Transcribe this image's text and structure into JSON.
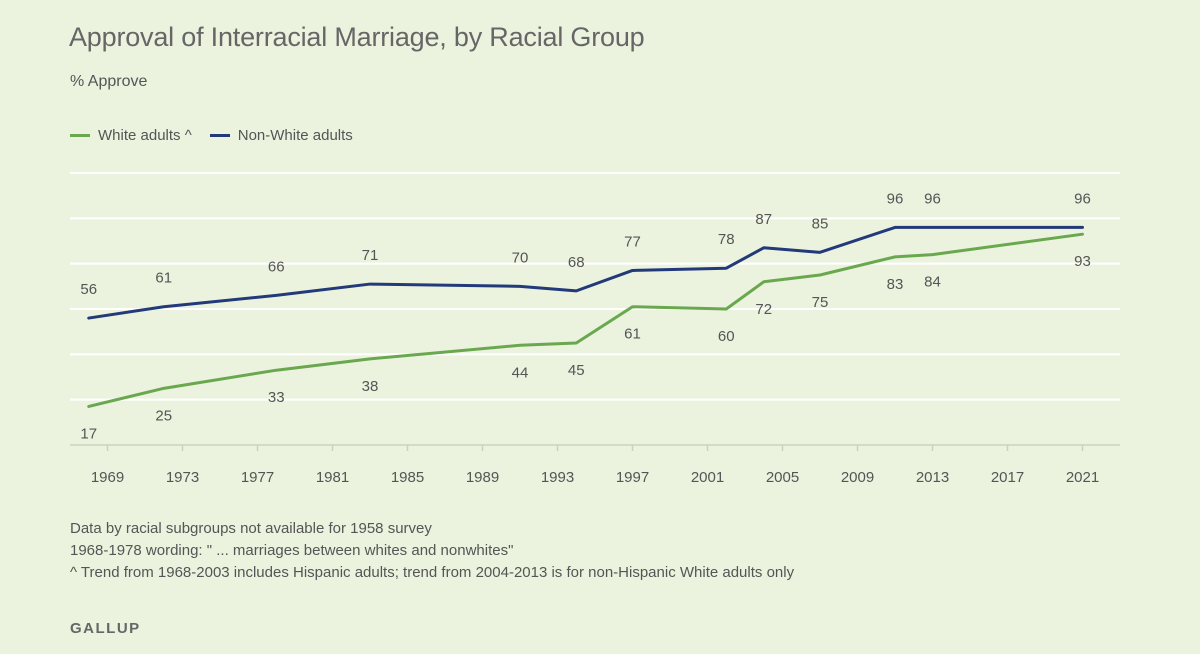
{
  "chart_data": {
    "type": "line",
    "title": "Approval of Interracial Marriage, by Racial Group",
    "ylabel": "% Approve",
    "xlabel": "",
    "x_ticks": [
      "1969",
      "1973",
      "1977",
      "1981",
      "1985",
      "1989",
      "1993",
      "1997",
      "2001",
      "2005",
      "2009",
      "2013",
      "2017",
      "2021"
    ],
    "xlim": [
      1967,
      2023
    ],
    "ylim": [
      0,
      120
    ],
    "gridlines": [
      20,
      40,
      60,
      80,
      100,
      120
    ],
    "series": [
      {
        "name": "White adults ^",
        "color": "#6aa84f",
        "x": [
          1968,
          1972,
          1978,
          1983,
          1991,
          1994,
          1997,
          2002,
          2004,
          2007,
          2011,
          2013,
          2021
        ],
        "values": [
          17,
          25,
          33,
          38,
          44,
          45,
          61,
          60,
          72,
          75,
          83,
          84,
          93
        ],
        "label_position": "below"
      },
      {
        "name": "Non-White adults",
        "color": "#233a7a",
        "x": [
          1968,
          1972,
          1978,
          1983,
          1991,
          1994,
          1997,
          2002,
          2004,
          2007,
          2011,
          2013,
          2021
        ],
        "values": [
          56,
          61,
          66,
          71,
          70,
          68,
          77,
          78,
          87,
          85,
          96,
          96,
          96
        ],
        "label_position": "above"
      }
    ]
  },
  "legend": {
    "white_label": "White adults ^",
    "nonwhite_label": "Non-White adults"
  },
  "notes": [
    "Data by racial subgroups not available for 1958 survey",
    "1968-1978 wording: \" ... marriages between whites and nonwhites\"",
    "^ Trend from 1968-2003 includes Hispanic adults; trend from 2004-2013 is for non-Hispanic White adults only"
  ],
  "brand": "GALLUP"
}
